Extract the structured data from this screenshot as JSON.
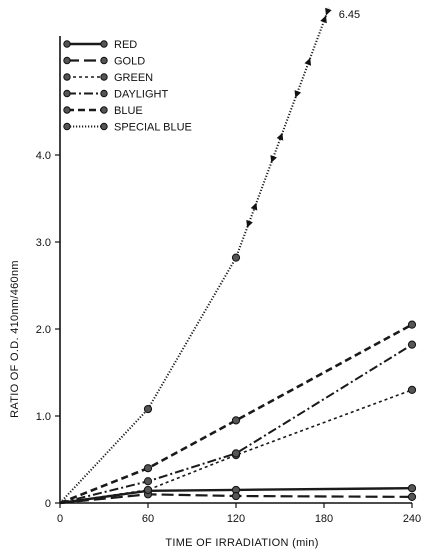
{
  "chart_data": {
    "type": "line",
    "xlabel": "TIME OF IRRADIATION (min)",
    "ylabel": "RATIO OF O.D. 410nm/460nm",
    "xlim": [
      0,
      240
    ],
    "ylim": [
      0,
      5.0
    ],
    "xticks": [
      0,
      60,
      120,
      180,
      240
    ],
    "yticks": [
      0,
      1.0,
      2.0,
      3.0,
      4.0
    ],
    "xtick_labels": [
      "0",
      "60",
      "120",
      "180",
      "240"
    ],
    "ytick_labels": [
      "0",
      "1.0",
      "2.0",
      "3.0",
      "4.0"
    ],
    "legend_position": "top-left",
    "grid": false,
    "annotation": "6.45",
    "series": [
      {
        "name": "RED",
        "dash": "solid",
        "x": [
          0,
          60,
          120,
          240
        ],
        "y": [
          0,
          0.14,
          0.15,
          0.17
        ]
      },
      {
        "name": "GOLD",
        "dash": "long-dash",
        "x": [
          0,
          60,
          120,
          240
        ],
        "y": [
          0,
          0.1,
          0.08,
          0.07
        ]
      },
      {
        "name": "GREEN",
        "dash": "short-dash",
        "x": [
          0,
          60,
          120,
          240
        ],
        "y": [
          0,
          0.15,
          0.55,
          1.3
        ]
      },
      {
        "name": "DAYLIGHT",
        "dash": "dash-dot",
        "x": [
          0,
          60,
          120,
          240
        ],
        "y": [
          0,
          0.25,
          0.57,
          1.82
        ]
      },
      {
        "name": "BLUE",
        "dash": "dash",
        "x": [
          0,
          60,
          120,
          240
        ],
        "y": [
          0,
          0.4,
          0.95,
          2.05
        ]
      },
      {
        "name": "SPECIAL BLUE",
        "dash": "dotted",
        "x": [
          0,
          60,
          120,
          200
        ],
        "y": [
          0,
          1.08,
          2.82,
          6.45
        ]
      }
    ]
  }
}
